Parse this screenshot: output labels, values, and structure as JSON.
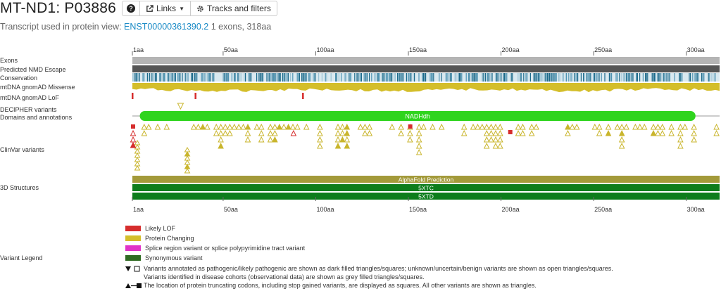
{
  "header": {
    "title": "MT-ND1: P03886",
    "links_label": "Links",
    "tracks_label": "Tracks and filters",
    "help_icon": "question-circle-icon",
    "links_icon": "external-link-icon",
    "tracks_icon": "gear-icon"
  },
  "transcript": {
    "prefix": "Transcript used in protein view:",
    "id": "ENST00000361390.2",
    "suffix": "1 exons, 318aa"
  },
  "tracks": {
    "exons": "Exons",
    "nmd": "Predicted NMD Escape",
    "conservation": "Conservation",
    "missense": "mtDNA gnomAD Missense",
    "lof": "mtDNA gnomAD LoF",
    "decipher": "DECIPHER variants",
    "domains": "Domains and annotations",
    "clinvar": "ClinVar variants",
    "structures": "3D Structures"
  },
  "protein_length": 318,
  "ruler_ticks": [
    "1aa",
    "50aa",
    "100aa",
    "150aa",
    "200aa",
    "250aa",
    "300aa"
  ],
  "ruler_positions": [
    1,
    50,
    100,
    150,
    200,
    250,
    300
  ],
  "domain": {
    "label": "NADHdh",
    "start": 5,
    "end": 305,
    "color": "#2fd41e"
  },
  "structures": [
    {
      "label": "AlphaFold Prediction",
      "color": "#a39a3a"
    },
    {
      "label": "5XTC",
      "color": "#0d7d1c"
    },
    {
      "label": "5XTD",
      "color": "#0d7d1c"
    }
  ],
  "lof_positions": [
    1,
    35,
    93
  ],
  "decipher_positions": [
    27
  ],
  "legend": {
    "title": "Variant Legend",
    "items": [
      {
        "label": "Likely LOF",
        "color": "#d62d2d"
      },
      {
        "label": "Protein Changing",
        "color": "#d4be2a"
      },
      {
        "label": "Splice region variant or splice polypyrimidine tract variant",
        "color": "#e033c8"
      },
      {
        "label": "Synonymous variant",
        "color": "#2f6b22"
      }
    ],
    "note1": "Variants annotated as pathogenic/likely pathogenic are shown as dark filled triangles/squares; unknown/uncertain/benign variants are shown as open triangles/squares.",
    "note2": "Variants identified in disease cohorts (observational data) are shown as grey filled triangles/squares.",
    "note3": "The location of protein truncating codons, including stop gained variants, are displayed as squares. All other variants are shown as triangles."
  },
  "colors": {
    "exon": "#b4b4b4",
    "nmd": "#555555",
    "missense": "#d4be2a",
    "lof": "#d62d2d",
    "protein_changing": "#d4be2a",
    "link": "#1b8bc6"
  }
}
